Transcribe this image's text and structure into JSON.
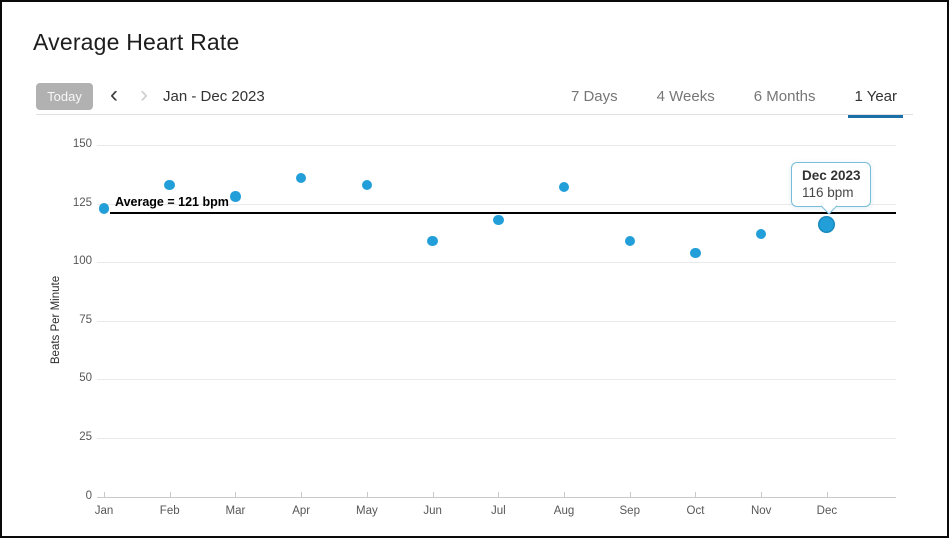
{
  "header": {
    "title": "Average Heart Rate"
  },
  "toolbar": {
    "today_label": "Today",
    "prev_icon": "‹",
    "next_icon": "›",
    "date_range": "Jan - Dec 2023",
    "tabs": [
      {
        "label": "7 Days",
        "active": false
      },
      {
        "label": "4 Weeks",
        "active": false
      },
      {
        "label": "6 Months",
        "active": false
      },
      {
        "label": "1 Year",
        "active": true
      }
    ]
  },
  "colors": {
    "accent": "#1b6fa8",
    "point": "#229ed9",
    "tooltip_border": "#79bdd9",
    "average_line": "#000000"
  },
  "chart_data": {
    "type": "scatter",
    "title": "Average Heart Rate",
    "xlabel": "",
    "ylabel": "Beats Per Minute",
    "categories": [
      "Jan",
      "Feb",
      "Mar",
      "Apr",
      "May",
      "Jun",
      "Jul",
      "Aug",
      "Sep",
      "Oct",
      "Nov",
      "Dec"
    ],
    "values": [
      123,
      133,
      128,
      136,
      133,
      109,
      118,
      132,
      109,
      104,
      112,
      116
    ],
    "ylim": [
      0,
      150
    ],
    "yticks": [
      0,
      25,
      50,
      75,
      100,
      125,
      150
    ],
    "grid": true,
    "legend": "none",
    "average_line": {
      "value": 121,
      "label": "Average = 121 bpm"
    },
    "highlight": {
      "index": 11,
      "tooltip_title": "Dec 2023",
      "tooltip_value": "116 bpm"
    }
  }
}
